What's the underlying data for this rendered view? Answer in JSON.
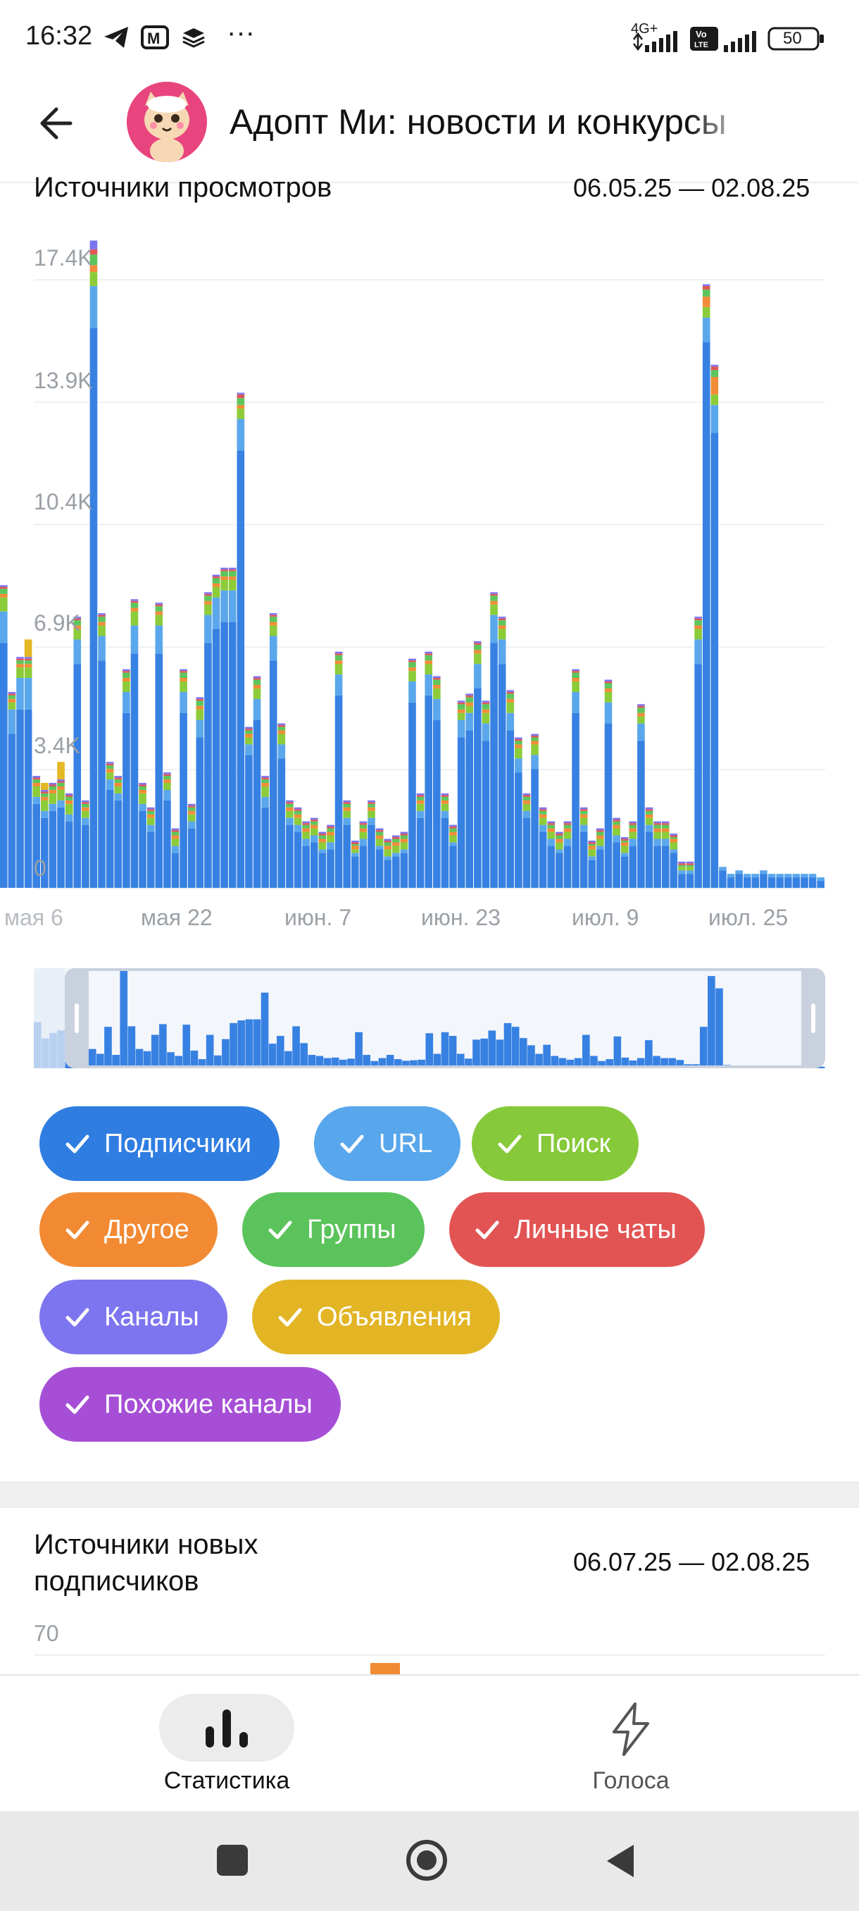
{
  "status_bar": {
    "time": "16:32",
    "network_label": "4G+",
    "volte_label": "Vo LTE",
    "battery": "50"
  },
  "header": {
    "title": "Адопт Ми: новости и конкурсы",
    "back_icon": "arrow-left-icon",
    "avatar_icon": "cat-mascot-avatar"
  },
  "views_section": {
    "title": "Источники просмотров",
    "date_range": "06.05.25 — 02.08.25",
    "chart_data": {
      "type": "bar",
      "stacked": true,
      "yticks": [
        "17.4K",
        "13.9K",
        "10.4K",
        "6.9K",
        "3.4K",
        "0"
      ],
      "ylim": [
        0,
        17400
      ],
      "grid": true,
      "xticks": [
        "мая 6",
        "мая 22",
        "июн. 7",
        "июн. 23",
        "июл. 9",
        "июл. 25"
      ],
      "colors": [
        "#3781e3",
        "#5ba7ec",
        "#8ccc39",
        "#f28c38",
        "#5cc65c",
        "#e05656",
        "#7b74f0",
        "#e4b824",
        "#a94fd6"
      ],
      "series": [
        {
          "name": "Подписчики",
          "values": [
            7000,
            4400,
            5100,
            5100,
            2400,
            2000,
            2200,
            2300,
            1900,
            6400,
            1800,
            16000,
            6500,
            2800,
            2500,
            5000,
            6700,
            2200,
            1600,
            6700,
            2500,
            1000,
            5000,
            1700,
            4300,
            7000,
            7400,
            7600,
            7600,
            12500,
            3800,
            4800,
            2300,
            6500,
            3700,
            1800,
            1600,
            1200,
            1300,
            1000,
            1100,
            5500,
            1800,
            900,
            1200,
            1800,
            1100,
            800,
            900,
            1000,
            5300,
            2000,
            5500,
            4800,
            2000,
            1200,
            4300,
            4500,
            5700,
            4200,
            7000,
            6400,
            4500,
            3300,
            2000,
            3400,
            1600,
            1200,
            1000,
            1200,
            5000,
            1600,
            800,
            1100,
            4700,
            1300,
            900,
            1200,
            4200,
            1600,
            1200,
            1200,
            1000,
            400,
            400,
            6400,
            15600,
            13000,
            500,
            300,
            400,
            300,
            300,
            400,
            300,
            300,
            300,
            300,
            300,
            300,
            200
          ],
          "note": "stacked-total series values below represent visual heights; other sources stacked on top"
        },
        {
          "name": "URL",
          "values": [
            900,
            700,
            900,
            900,
            200,
            200,
            200,
            200,
            200,
            700,
            200,
            1200,
            700,
            300,
            200,
            600,
            800,
            200,
            200,
            800,
            300,
            200,
            600,
            200,
            500,
            800,
            900,
            900,
            900,
            900,
            300,
            600,
            300,
            700,
            400,
            200,
            200,
            200,
            200,
            100,
            200,
            600,
            200,
            100,
            200,
            200,
            100,
            100,
            100,
            100,
            600,
            200,
            600,
            600,
            200,
            100,
            500,
            500,
            700,
            500,
            800,
            700,
            500,
            400,
            200,
            400,
            200,
            200,
            100,
            200,
            600,
            200,
            100,
            100,
            600,
            200,
            100,
            200,
            500,
            200,
            200,
            200,
            100,
            100,
            100,
            700,
            700,
            800,
            100,
            100,
            100,
            100,
            100,
            100,
            100,
            100,
            100,
            100,
            100,
            100,
            100
          ]
        },
        {
          "name": "Поиск",
          "values": [
            400,
            200,
            300,
            300,
            300,
            300,
            300,
            300,
            300,
            300,
            200,
            400,
            300,
            200,
            200,
            300,
            400,
            300,
            200,
            300,
            200,
            200,
            300,
            200,
            300,
            300,
            300,
            300,
            300,
            300,
            200,
            300,
            300,
            300,
            300,
            200,
            200,
            200,
            200,
            200,
            200,
            300,
            200,
            100,
            200,
            200,
            200,
            200,
            200,
            200,
            300,
            200,
            300,
            300,
            200,
            200,
            200,
            200,
            300,
            300,
            300,
            300,
            300,
            300,
            200,
            300,
            200,
            200,
            200,
            200,
            300,
            200,
            200,
            200,
            300,
            200,
            200,
            200,
            200,
            200,
            200,
            200,
            200,
            100,
            100,
            300,
            300,
            300,
            0,
            0,
            0,
            0,
            0,
            0,
            0,
            0,
            0,
            0,
            0,
            0,
            0
          ]
        },
        {
          "name": "Другое",
          "values": [
            100,
            100,
            100,
            100,
            100,
            100,
            100,
            100,
            100,
            100,
            100,
            200,
            100,
            100,
            100,
            100,
            100,
            100,
            100,
            100,
            100,
            100,
            100,
            100,
            100,
            100,
            100,
            100,
            100,
            100,
            100,
            100,
            100,
            100,
            100,
            100,
            100,
            100,
            100,
            100,
            100,
            100,
            100,
            100,
            100,
            100,
            100,
            100,
            100,
            100,
            100,
            100,
            100,
            100,
            100,
            100,
            100,
            100,
            100,
            100,
            100,
            100,
            100,
            100,
            100,
            100,
            100,
            100,
            100,
            100,
            100,
            100,
            100,
            100,
            100,
            100,
            100,
            100,
            100,
            100,
            100,
            100,
            100,
            0,
            0,
            100,
            300,
            500,
            0,
            0,
            0,
            0,
            0,
            0,
            0,
            0,
            0,
            0,
            0,
            0,
            0
          ]
        },
        {
          "name": "Группы",
          "values": [
            150,
            100,
            100,
            100,
            100,
            100,
            100,
            100,
            100,
            150,
            100,
            300,
            150,
            100,
            100,
            150,
            150,
            100,
            100,
            150,
            100,
            100,
            150,
            100,
            150,
            150,
            150,
            150,
            150,
            200,
            100,
            150,
            100,
            150,
            100,
            100,
            100,
            100,
            100,
            100,
            100,
            150,
            100,
            50,
            100,
            100,
            100,
            100,
            100,
            100,
            150,
            100,
            150,
            150,
            100,
            100,
            150,
            150,
            150,
            150,
            150,
            150,
            150,
            100,
            100,
            100,
            100,
            100,
            100,
            100,
            150,
            100,
            50,
            100,
            150,
            100,
            50,
            100,
            150,
            100,
            100,
            100,
            50,
            50,
            50,
            150,
            200,
            200,
            0,
            0,
            0,
            0,
            0,
            0,
            0,
            0,
            0,
            0,
            0,
            0,
            0
          ]
        },
        {
          "name": "Личные чаты",
          "values": [
            50,
            50,
            50,
            50,
            50,
            50,
            50,
            50,
            50,
            50,
            50,
            150,
            50,
            50,
            50,
            50,
            50,
            50,
            50,
            50,
            50,
            50,
            50,
            50,
            50,
            50,
            50,
            50,
            50,
            100,
            50,
            50,
            50,
            50,
            50,
            50,
            50,
            50,
            50,
            50,
            50,
            50,
            50,
            50,
            50,
            50,
            50,
            50,
            50,
            50,
            50,
            50,
            50,
            50,
            50,
            50,
            50,
            50,
            50,
            50,
            50,
            50,
            50,
            50,
            50,
            50,
            50,
            50,
            50,
            50,
            50,
            50,
            50,
            50,
            50,
            50,
            50,
            50,
            50,
            50,
            50,
            50,
            50,
            50,
            50,
            50,
            100,
            100,
            0,
            0,
            0,
            0,
            0,
            0,
            0,
            0,
            0,
            0,
            0,
            0,
            0
          ]
        },
        {
          "name": "Каналы",
          "values": [
            50,
            50,
            50,
            50,
            50,
            50,
            50,
            50,
            50,
            50,
            50,
            250,
            50,
            50,
            50,
            50,
            50,
            50,
            50,
            50,
            50,
            50,
            50,
            50,
            50,
            50,
            50,
            50,
            50,
            50,
            50,
            50,
            50,
            50,
            50,
            50,
            50,
            50,
            50,
            50,
            50,
            50,
            50,
            50,
            50,
            50,
            50,
            50,
            50,
            50,
            50,
            50,
            50,
            50,
            50,
            50,
            50,
            50,
            50,
            50,
            50,
            50,
            50,
            50,
            50,
            50,
            50,
            50,
            50,
            50,
            50,
            50,
            50,
            50,
            50,
            50,
            50,
            50,
            50,
            50,
            50,
            50,
            50,
            50,
            50,
            50,
            50,
            50,
            0,
            0,
            0,
            0,
            0,
            0,
            0,
            0,
            0,
            0,
            0,
            0,
            0
          ]
        },
        {
          "name": "Объявления",
          "values": [
            0,
            0,
            0,
            500,
            0,
            200,
            0,
            500,
            0,
            0,
            0,
            0,
            0,
            0,
            0,
            0,
            0,
            0,
            0,
            0,
            0,
            0,
            0,
            0,
            0,
            0,
            0,
            0,
            0,
            0,
            0,
            0,
            0,
            0,
            0,
            0,
            0,
            0,
            0,
            0,
            0,
            0,
            0,
            0,
            0,
            0,
            0,
            0,
            0,
            0,
            0,
            0,
            0,
            0,
            0,
            0,
            0,
            0,
            0,
            0,
            0,
            0,
            0,
            0,
            0,
            0,
            0,
            0,
            0,
            0,
            0,
            0,
            0,
            0,
            0,
            0,
            0,
            0,
            0,
            0,
            0,
            0,
            0,
            0,
            0,
            0,
            0,
            0,
            0,
            0,
            0,
            0,
            0,
            0,
            0,
            0,
            0,
            0,
            0,
            0,
            0
          ]
        },
        {
          "name": "Похожие каналы",
          "values": [
            0,
            0,
            0,
            0,
            0,
            0,
            0,
            0,
            0,
            0,
            0,
            0,
            0,
            0,
            0,
            0,
            0,
            0,
            0,
            0,
            0,
            0,
            0,
            0,
            0,
            0,
            0,
            0,
            0,
            0,
            0,
            0,
            0,
            0,
            0,
            0,
            0,
            0,
            0,
            0,
            0,
            0,
            0,
            0,
            0,
            0,
            0,
            0,
            0,
            0,
            0,
            0,
            0,
            0,
            0,
            0,
            0,
            0,
            0,
            0,
            0,
            0,
            0,
            0,
            0,
            0,
            0,
            0,
            0,
            0,
            0,
            0,
            0,
            0,
            0,
            0,
            0,
            0,
            0,
            0,
            0,
            0,
            0,
            0,
            0,
            0,
            0,
            0,
            0,
            0,
            0,
            0,
            0,
            0,
            0,
            0,
            0,
            0,
            0,
            0,
            0
          ]
        }
      ]
    },
    "filters": [
      {
        "label": "Подписчики",
        "color": "#2f7de1"
      },
      {
        "label": "URL",
        "color": "#58a6ec"
      },
      {
        "label": "Поиск",
        "color": "#86c93a"
      },
      {
        "label": "Другое",
        "color": "#f28a34"
      },
      {
        "label": "Группы",
        "color": "#5bc35b"
      },
      {
        "label": "Личные чаты",
        "color": "#e25454"
      },
      {
        "label": "Каналы",
        "color": "#7d75ef"
      },
      {
        "label": "Объявления",
        "color": "#e3b525"
      },
      {
        "label": "Похожие каналы",
        "color": "#a64fd6"
      }
    ]
  },
  "subs_section": {
    "title_line1": "Источники новых",
    "title_line2": "подписчиков",
    "date_range": "06.07.25 — 02.08.25",
    "top_tick": "70"
  },
  "bottom_nav": {
    "items": [
      {
        "label": "Статистика",
        "icon": "bar-chart-icon",
        "active": true
      },
      {
        "label": "Голоса",
        "icon": "lightning-icon",
        "active": false
      }
    ]
  }
}
